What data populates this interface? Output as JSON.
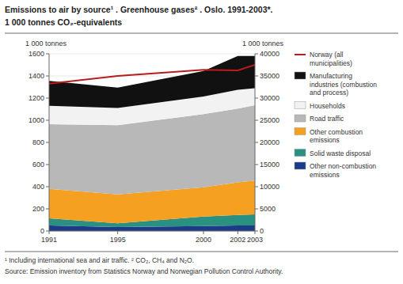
{
  "chart_data": {
    "type": "area",
    "stacked": true,
    "title": "Emissions to air by source¹ . Greenhouse gases² . Oslo. 1991-2003*.",
    "subtitle": "1 000 tonnes CO₂-equivalents",
    "y_label": "1 000 tonnes",
    "y2_label": "1 000 tonnes",
    "annotations": [
      "¹ Including international sea and air traffic. ² CO₂, CH₄ and N₂O.",
      "Source: Emission inventory from Statistics Norway and Norwegian Pollution Control Authority."
    ],
    "x": [
      1991,
      1995,
      2000,
      2002,
      2003
    ],
    "xlim": [
      1991,
      2003
    ],
    "xticks": [
      1991,
      1995,
      2000,
      2002,
      2003
    ],
    "ylim": [
      0,
      1600
    ],
    "yticks": [
      0,
      200,
      400,
      600,
      800,
      1000,
      1200,
      1400,
      1600
    ],
    "y2lim": [
      0,
      40000
    ],
    "y2ticks": [
      0,
      5000,
      10000,
      15000,
      20000,
      25000,
      30000,
      35000,
      40000
    ],
    "grid": true,
    "legend": "right",
    "series": [
      {
        "name": "Other non-combustion\nemissions",
        "type": "area",
        "color": "#1c3a87",
        "values": [
          50,
          35,
          45,
          50,
          50
        ]
      },
      {
        "name": "Solid waste disposal",
        "type": "area",
        "color": "#2a9080",
        "values": [
          65,
          35,
          85,
          95,
          100
        ]
      },
      {
        "name": "Other combustion\nemissions",
        "type": "area",
        "color": "#f5a020",
        "values": [
          265,
          260,
          265,
          295,
          305
        ]
      },
      {
        "name": "Road traffic",
        "type": "area",
        "color": "#b8b8b8",
        "values": [
          585,
          625,
          660,
          665,
          680
        ]
      },
      {
        "name": "Households",
        "type": "area",
        "color": "#f2f2f2",
        "values": [
          165,
          155,
          160,
          170,
          155
        ]
      },
      {
        "name": "Manufacturing\nindustries (combustion\nand process)",
        "type": "area",
        "color": "#111111",
        "values": [
          225,
          185,
          230,
          305,
          290
        ]
      },
      {
        "name": "Norway (all\nmunicipalities)",
        "type": "line",
        "color": "#b81c1c",
        "values": [
          1330,
          1400,
          1455,
          1450,
          1500
        ]
      }
    ]
  }
}
